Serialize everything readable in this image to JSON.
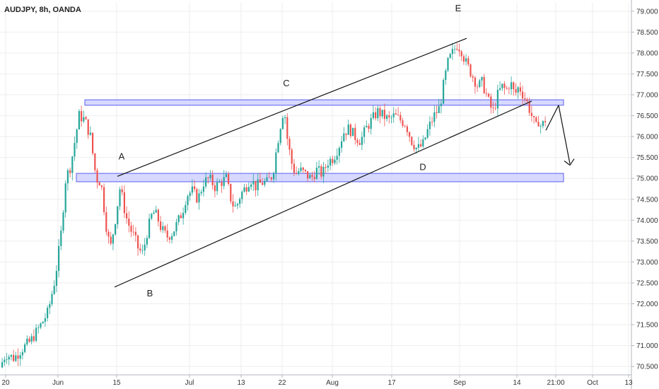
{
  "header": {
    "title": "AUDJPY, 8h, OANDA"
  },
  "colors": {
    "up": "#26a69a",
    "down": "#ef5350",
    "zone_fill": "#c9ccff",
    "zone_stroke": "#5b5ff0",
    "line": "#111111",
    "grid": "#eeeeee",
    "axis": "#b2b5be"
  },
  "chart_data": {
    "type": "candlestick",
    "ylim": [
      70.3,
      79.2
    ],
    "y_ticks": [
      "70.500",
      "71.000",
      "71.500",
      "72.000",
      "72.500",
      "73.000",
      "73.500",
      "74.000",
      "74.500",
      "75.000",
      "75.500",
      "76.000",
      "76.500",
      "77.000",
      "77.500",
      "78.000",
      "78.500",
      "79.000"
    ],
    "x_ticks": [
      "20",
      "Jun",
      "15",
      "Jul",
      "13",
      "22",
      "Aug",
      "17",
      "Sep",
      "14",
      "21:00",
      "Oct",
      "13"
    ],
    "price_path": [
      [
        0,
        70.4
      ],
      [
        10,
        70.8
      ],
      [
        22,
        70.7
      ],
      [
        32,
        70.9
      ],
      [
        45,
        71.1
      ],
      [
        60,
        71.5
      ],
      [
        70,
        71.8
      ],
      [
        80,
        72.6
      ],
      [
        88,
        73.6
      ],
      [
        95,
        75.0
      ],
      [
        102,
        75.3
      ],
      [
        108,
        75.9
      ],
      [
        114,
        76.5
      ],
      [
        122,
        76.4
      ],
      [
        130,
        76.0
      ],
      [
        138,
        75.0
      ],
      [
        145,
        74.9
      ],
      [
        152,
        73.9
      ],
      [
        158,
        73.3
      ],
      [
        165,
        74.0
      ],
      [
        172,
        74.8
      ],
      [
        180,
        74.1
      ],
      [
        186,
        73.8
      ],
      [
        192,
        73.6
      ],
      [
        198,
        73.3
      ],
      [
        204,
        73.2
      ],
      [
        210,
        73.7
      ],
      [
        218,
        74.2
      ],
      [
        224,
        74.1
      ],
      [
        230,
        73.8
      ],
      [
        238,
        73.6
      ],
      [
        246,
        73.7
      ],
      [
        252,
        73.9
      ],
      [
        260,
        74.2
      ],
      [
        266,
        74.6
      ],
      [
        274,
        74.7
      ],
      [
        282,
        74.5
      ],
      [
        290,
        74.9
      ],
      [
        298,
        75.0
      ],
      [
        306,
        74.8
      ],
      [
        314,
        74.9
      ],
      [
        322,
        75.0
      ],
      [
        330,
        74.4
      ],
      [
        336,
        74.3
      ],
      [
        342,
        74.6
      ],
      [
        350,
        74.8
      ],
      [
        356,
        75.0
      ],
      [
        364,
        74.8
      ],
      [
        372,
        74.9
      ],
      [
        380,
        74.9
      ],
      [
        388,
        75.1
      ],
      [
        394,
        75.8
      ],
      [
        400,
        76.4
      ],
      [
        404,
        76.7
      ],
      [
        408,
        76.0
      ],
      [
        414,
        75.4
      ],
      [
        420,
        75.1
      ],
      [
        426,
        75.2
      ],
      [
        434,
        75.1
      ],
      [
        442,
        75.0
      ],
      [
        450,
        75.2
      ],
      [
        458,
        75.1
      ],
      [
        466,
        75.4
      ],
      [
        474,
        75.5
      ],
      [
        482,
        75.8
      ],
      [
        488,
        76.1
      ],
      [
        496,
        76.2
      ],
      [
        504,
        76.0
      ],
      [
        512,
        75.9
      ],
      [
        520,
        76.2
      ],
      [
        528,
        76.4
      ],
      [
        536,
        76.6
      ],
      [
        544,
        76.5
      ],
      [
        552,
        76.4
      ],
      [
        560,
        76.5
      ],
      [
        568,
        76.4
      ],
      [
        576,
        76.3
      ],
      [
        584,
        75.9
      ],
      [
        592,
        75.7
      ],
      [
        600,
        75.8
      ],
      [
        608,
        76.2
      ],
      [
        616,
        76.5
      ],
      [
        624,
        76.7
      ],
      [
        630,
        77.3
      ],
      [
        636,
        77.8
      ],
      [
        642,
        78.0
      ],
      [
        648,
        78.2
      ],
      [
        654,
        78.1
      ],
      [
        660,
        77.8
      ],
      [
        666,
        77.6
      ],
      [
        672,
        77.4
      ],
      [
        678,
        77.2
      ],
      [
        684,
        77.3
      ],
      [
        690,
        77.0
      ],
      [
        696,
        76.7
      ],
      [
        700,
        76.6
      ],
      [
        706,
        77.0
      ],
      [
        712,
        77.2
      ],
      [
        718,
        77.1
      ],
      [
        724,
        77.3
      ],
      [
        730,
        77.0
      ],
      [
        736,
        77.2
      ],
      [
        742,
        77.0
      ],
      [
        748,
        76.8
      ],
      [
        752,
        76.6
      ],
      [
        756,
        76.4
      ],
      [
        760,
        76.2
      ],
      [
        764,
        76.4
      ],
      [
        768,
        76.2
      ],
      [
        772,
        76.4
      ]
    ],
    "zones": [
      {
        "x1": 120,
        "x2": 797,
        "y1": 76.75,
        "y2": 76.88
      },
      {
        "x1": 108,
        "x2": 797,
        "y1": 74.92,
        "y2": 75.12
      }
    ],
    "lines": [
      {
        "from": [
          166,
          75.05
        ],
        "to": [
          660,
          78.35
        ]
      },
      {
        "from": [
          162,
          72.4
        ],
        "to": [
          752,
          76.85
        ]
      },
      {
        "from": [
          772,
          76.15
        ],
        "to": [
          790,
          76.75
        ]
      },
      {
        "from": [
          790,
          76.75
        ],
        "to": [
          806,
          75.35
        ]
      }
    ],
    "annotations": [
      {
        "label": "A",
        "x": 172,
        "y": 75.45
      },
      {
        "label": "B",
        "x": 212,
        "y": 72.18
      },
      {
        "label": "C",
        "x": 405,
        "y": 77.2
      },
      {
        "label": "D",
        "x": 598,
        "y": 75.2
      },
      {
        "label": "E",
        "x": 648,
        "y": 79.0
      }
    ]
  }
}
